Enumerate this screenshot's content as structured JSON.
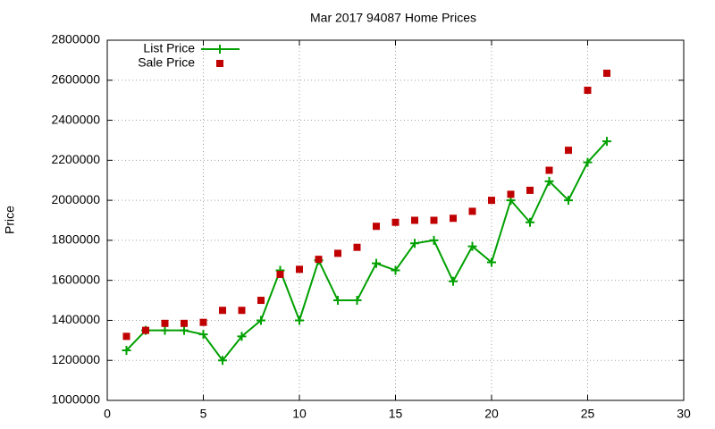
{
  "chart_data": {
    "type": "line",
    "title": "Mar 2017 94087 Home Prices",
    "y_label": "Price",
    "x": [
      1,
      2,
      3,
      4,
      5,
      6,
      7,
      8,
      9,
      10,
      11,
      12,
      13,
      14,
      15,
      16,
      17,
      18,
      19,
      20,
      21,
      22,
      23,
      24,
      25,
      26
    ],
    "series": [
      {
        "name": "List Price",
        "color": "#00a000",
        "style": "linespoints",
        "values": [
          1250000,
          1350000,
          1350000,
          1350000,
          1330000,
          1200000,
          1320000,
          1400000,
          1650000,
          1400000,
          1700000,
          1500000,
          1500000,
          1685000,
          1650000,
          1785000,
          1800000,
          1595000,
          1770000,
          1690000,
          2000000,
          1890000,
          2095000,
          2000000,
          2190000,
          2295000
        ]
      },
      {
        "name": "Sale Price",
        "color": "#c00000",
        "style": "points",
        "values": [
          1320000,
          1350000,
          1385000,
          1385000,
          1390000,
          1450000,
          1450000,
          1500000,
          1630000,
          1655000,
          1705000,
          1735000,
          1765000,
          1870000,
          1890000,
          1900000,
          1900000,
          1910000,
          1945000,
          2000000,
          2030000,
          2050000,
          2150000,
          2250000,
          2550000,
          2635000
        ]
      }
    ],
    "xlim": [
      0,
      30
    ],
    "xticks": [
      0,
      5,
      10,
      15,
      20,
      25,
      30
    ],
    "ylim": [
      1000000,
      2800000
    ],
    "yticks": [
      1000000,
      1200000,
      1400000,
      1600000,
      1800000,
      2000000,
      2200000,
      2400000,
      2600000,
      2800000
    ],
    "grid": true,
    "legend": "top-left"
  }
}
